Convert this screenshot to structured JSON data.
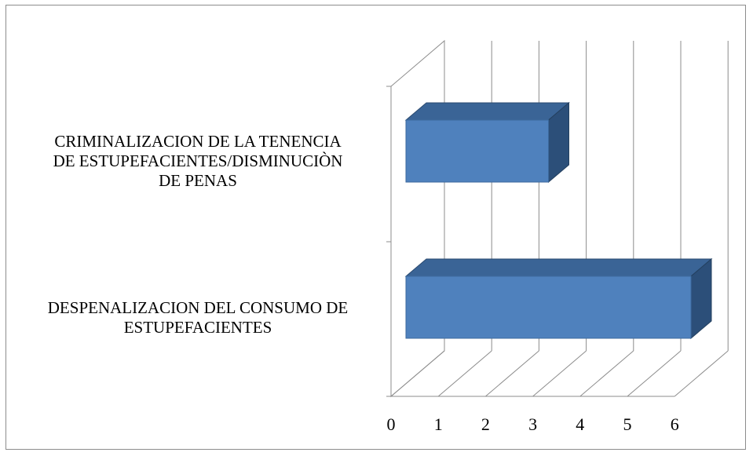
{
  "chart_data": {
    "type": "bar",
    "orientation": "horizontal",
    "three_d": true,
    "categories": [
      "CRIMINALIZACION DE LA TENENCIA\nDE ESTUPEFACIENTES/DISMINUCIÒN\nDE PENAS",
      "DESPENALIZACION DEL CONSUMO DE\nESTUPEFACIENTES"
    ],
    "values": [
      3,
      6
    ],
    "xlim": [
      0,
      6
    ],
    "xticks": [
      "0",
      "1",
      "2",
      "3",
      "4",
      "5",
      "6"
    ],
    "grid": true,
    "legend": "none",
    "bar_color": "#4f81bd",
    "bar_top_color": "#3a6496",
    "bar_side_color": "#2c4f79",
    "grid_color": "#8c8c8c"
  }
}
